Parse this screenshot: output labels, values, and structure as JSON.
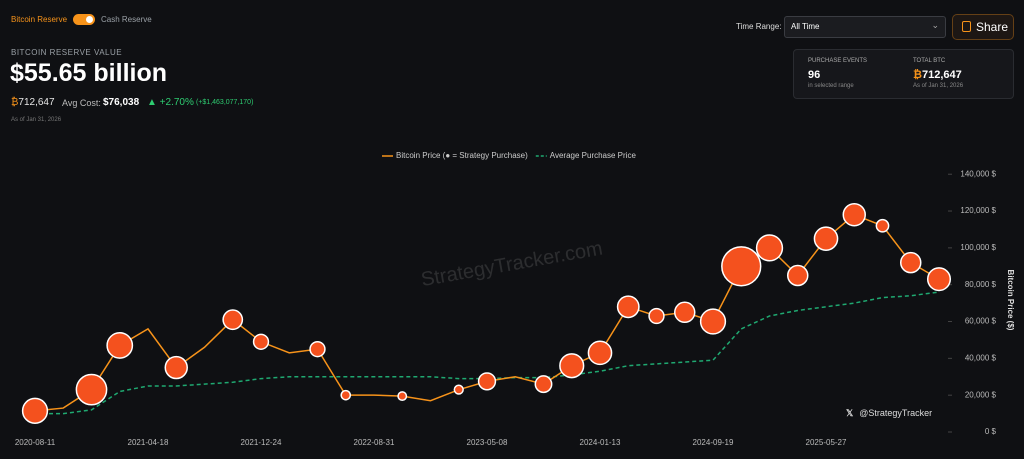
{
  "header": {
    "toggle_on": "Bitcoin Reserve",
    "toggle_off": "Cash Reserve",
    "label": "BITCOIN RESERVE VALUE",
    "value": "$55.65 billion",
    "btc_symbol": "₿",
    "btc": "712,647",
    "avg_cost_label": "Avg Cost:",
    "avg_cost": "$76,038",
    "change": "▲ +2.70%",
    "change_amount": "(+$1,463,077,170)",
    "as_of": "As of Jan 31, 2026"
  },
  "controls": {
    "time_range_label": "Time Range:",
    "time_range": "All Time",
    "share": "Share"
  },
  "stats": {
    "purchase_events_label": "PURCHASE EVENTS",
    "purchase_events": 96,
    "purchase_events_note": "in selected range",
    "total_btc_label": "TOTAL BTC",
    "total_btc": "712,647",
    "total_btc_note": "As of Jan 31, 2026"
  },
  "watermark": "StrategyTracker.com",
  "handle": "@StrategyTracker",
  "chart_data": {
    "type": "line",
    "y_label": "Bitcoin Price ($)",
    "categories": [
      "2020-08-11",
      null,
      null,
      null,
      "2021-04-18",
      null,
      null,
      null,
      "2021-12-24",
      null,
      null,
      null,
      "2022-08-31",
      null,
      null,
      null,
      "2023-05-08",
      null,
      null,
      null,
      "2024-01-13",
      null,
      null,
      null,
      "2024-09-19",
      null,
      null,
      null,
      "2025-05-27",
      null,
      null,
      null,
      null
    ],
    "series": [
      {
        "name": "Bitcoin Price (● = Strategy Purchase)",
        "color": "#f7931a",
        "values": [
          11500,
          13000,
          23000,
          47000,
          56000,
          35000,
          46000,
          61000,
          49000,
          43000,
          45000,
          20000,
          20000,
          19500,
          17000,
          23000,
          27500,
          30000,
          26000,
          36000,
          43000,
          68000,
          63000,
          65000,
          60000,
          90000,
          100000,
          85000,
          105000,
          118000,
          112000,
          92000,
          83000
        ]
      },
      {
        "name": "Average Purchase Price",
        "color": "#1fa971",
        "dashed": true,
        "values": [
          10000,
          10000,
          12000,
          22000,
          25000,
          25000,
          26000,
          27000,
          29000,
          30000,
          30000,
          30000,
          30000,
          30000,
          30000,
          29000,
          29000,
          29500,
          29500,
          31000,
          33000,
          36000,
          37000,
          38000,
          39000,
          56000,
          63000,
          66000,
          68000,
          70000,
          73000,
          74000,
          76000
        ]
      }
    ],
    "purchases": {
      "color": "#f4511e",
      "values": [
        11500,
        null,
        23000,
        47000,
        null,
        35000,
        null,
        61000,
        49000,
        null,
        45000,
        20000,
        null,
        19500,
        null,
        23000,
        27500,
        null,
        26000,
        36000,
        43000,
        68000,
        63000,
        65000,
        60000,
        90000,
        100000,
        85000,
        105000,
        118000,
        112000,
        92000,
        83000
      ],
      "sizes": [
        18000,
        null,
        30000,
        19000,
        null,
        13000,
        null,
        9000,
        4000,
        null,
        4000,
        500,
        null,
        300,
        null,
        400,
        6000,
        null,
        5500,
        16000,
        15000,
        12000,
        4000,
        10000,
        18000,
        55000,
        20000,
        10000,
        15000,
        13000,
        2000,
        10000,
        14000
      ]
    },
    "ylim": [
      0,
      145000
    ],
    "yticks": [
      {
        "value": 0,
        "label": "0 $"
      },
      {
        "value": 20000,
        "label": "20,000 $"
      },
      {
        "value": 40000,
        "label": "40,000 $"
      },
      {
        "value": 60000,
        "label": "60,000 $"
      },
      {
        "value": 80000,
        "label": "80,000 $"
      },
      {
        "value": 100000,
        "label": "100,000 $"
      },
      {
        "value": 120000,
        "label": "120,000 $"
      },
      {
        "value": 140000,
        "label": "140,000 $"
      }
    ],
    "grid": false
  }
}
